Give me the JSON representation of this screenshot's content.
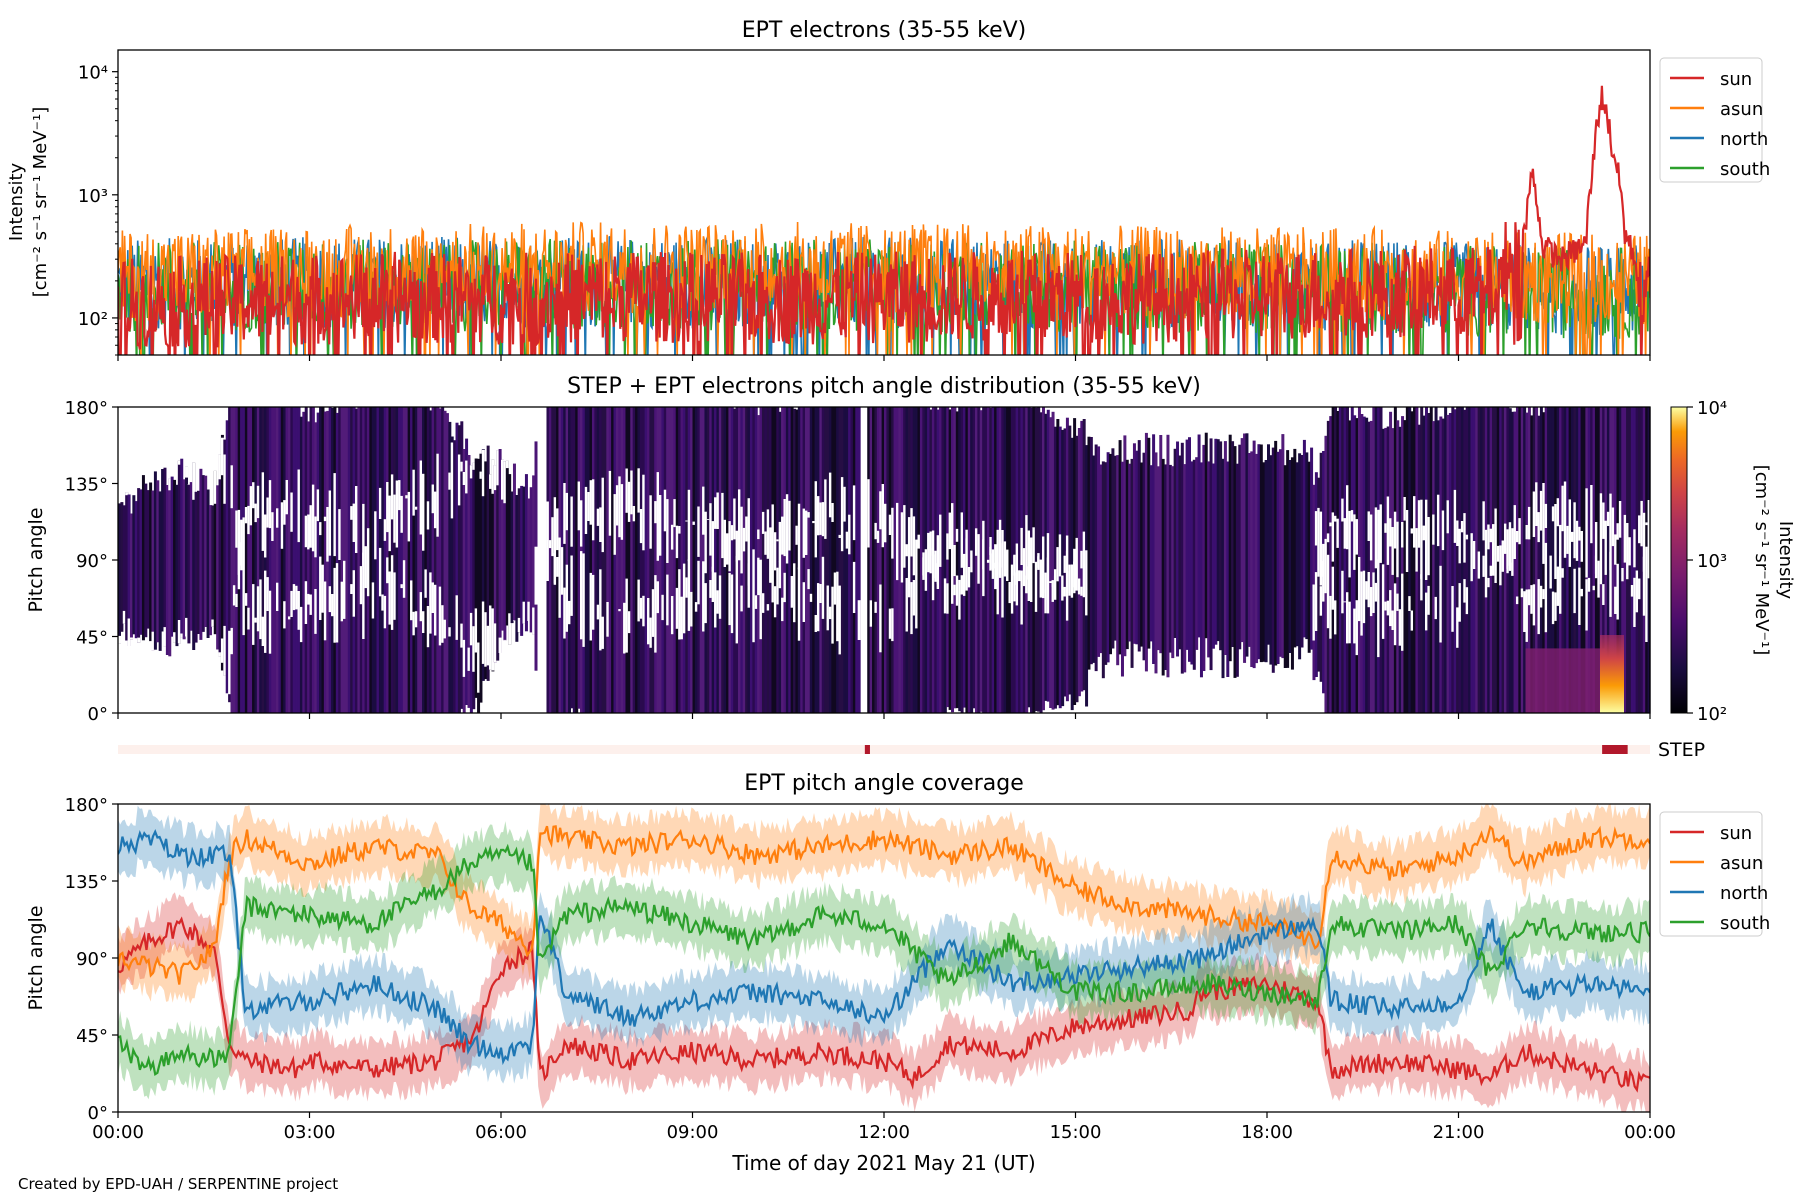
{
  "footer": "Created by EPD-UAH / SERPENTINE project",
  "chart_data": [
    {
      "type": "line",
      "title": "EPT electrons (35-55 keV)",
      "ylabel_line1": "Intensity",
      "ylabel_line2": "[cm⁻² s⁻¹ sr⁻¹ MeV⁻¹]",
      "yscale": "log",
      "ylim": [
        50,
        15000
      ],
      "yticks": [
        {
          "value": 100,
          "label": "10²"
        },
        {
          "value": 1000,
          "label": "10³"
        },
        {
          "value": 10000,
          "label": "10⁴"
        }
      ],
      "xlim_hours": [
        0,
        24
      ],
      "legend_position": "outside-right",
      "series": [
        {
          "name": "sun",
          "color": "#d62728",
          "x": [
            0,
            2,
            4,
            6,
            8,
            10,
            12,
            14,
            16,
            18,
            20,
            21.5,
            22.05,
            22.15,
            22.3,
            22.6,
            23.0,
            23.1,
            23.25,
            23.4,
            23.6,
            23.8,
            24
          ],
          "y": [
            160,
            170,
            180,
            175,
            185,
            175,
            180,
            185,
            180,
            190,
            200,
            200,
            500,
            1500,
            400,
            300,
            400,
            1500,
            6500,
            2500,
            500,
            250,
            200
          ]
        },
        {
          "name": "asun",
          "color": "#ff7f0e",
          "x": [
            0,
            4,
            8,
            12.5,
            16,
            20,
            22,
            24
          ],
          "y": [
            270,
            300,
            320,
            310,
            290,
            280,
            260,
            250
          ]
        },
        {
          "name": "north",
          "color": "#1f77b4",
          "x": [
            0,
            4,
            8,
            12,
            16,
            20,
            22,
            24
          ],
          "y": [
            230,
            240,
            240,
            235,
            230,
            225,
            210,
            200
          ]
        },
        {
          "name": "south",
          "color": "#2ca02c",
          "x": [
            0,
            4,
            8,
            12,
            16,
            20,
            22,
            24
          ],
          "y": [
            220,
            225,
            230,
            225,
            220,
            215,
            200,
            195
          ]
        }
      ]
    },
    {
      "type": "heatmap",
      "title": "STEP + EPT electrons pitch angle distribution (35-55 keV)",
      "ylabel": "Pitch angle",
      "ylim": [
        0,
        180
      ],
      "yticks": [
        "0°",
        "45°",
        "90°",
        "135°",
        "180°"
      ],
      "xlim_hours": [
        0,
        24
      ],
      "colorbar": {
        "label_line1": "Intensity",
        "label_line2": "[cm⁻² s⁻¹ sr⁻¹ MeV⁻¹]",
        "scale": "log",
        "range": [
          100,
          10000
        ],
        "ticks": [
          "10²",
          "10³",
          "10⁴"
        ],
        "colormap": "inferno"
      },
      "hotspot": {
        "x_hours": [
          23.2,
          23.6
        ],
        "pitch_angle": [
          0,
          45
        ],
        "intensity": 6000
      },
      "step_bar": {
        "label": "STEP",
        "highlight_intervals_hours": [
          [
            11.7,
            11.78
          ],
          [
            23.25,
            23.65
          ]
        ],
        "highlight_color": "#b2182b",
        "background_color": "#fdf0ec"
      }
    },
    {
      "type": "line",
      "title": "EPT pitch angle coverage",
      "ylabel": "Pitch angle",
      "xlabel": "Time of day 2021 May 21 (UT)",
      "ylim": [
        0,
        180
      ],
      "yticks": [
        "0°",
        "45°",
        "90°",
        "135°",
        "180°"
      ],
      "xticks": [
        "00:00",
        "03:00",
        "06:00",
        "09:00",
        "12:00",
        "15:00",
        "18:00",
        "21:00",
        "00:00"
      ],
      "xlim_hours": [
        0,
        24
      ],
      "legend_position": "outside-right",
      "band_halfwidth_deg": 15,
      "series": [
        {
          "name": "sun",
          "color": "#d62728",
          "x": [
            0,
            0.5,
            1,
            1.5,
            1.75,
            2,
            2.8,
            3,
            4,
            5,
            5.6,
            6,
            6.5,
            6.6,
            7,
            8,
            9,
            10,
            11,
            12,
            12.5,
            13,
            14,
            15,
            16,
            16.8,
            17,
            18,
            18.8,
            19,
            20,
            21,
            21.5,
            22,
            23,
            24
          ],
          "y": [
            85,
            100,
            110,
            95,
            40,
            30,
            25,
            30,
            25,
            30,
            45,
            85,
            95,
            20,
            40,
            30,
            35,
            30,
            35,
            30,
            20,
            40,
            35,
            50,
            55,
            60,
            70,
            75,
            65,
            25,
            30,
            25,
            20,
            35,
            25,
            15
          ]
        },
        {
          "name": "asun",
          "color": "#ff7f0e",
          "x": [
            0,
            0.5,
            1,
            1.5,
            1.75,
            2,
            3,
            4,
            5,
            5.5,
            6,
            6.5,
            6.6,
            7,
            8,
            9,
            10,
            11,
            12,
            13,
            14,
            15,
            16,
            17,
            18,
            18.8,
            19,
            20,
            21,
            21.5,
            22,
            23,
            24
          ],
          "y": [
            90,
            85,
            80,
            95,
            150,
            160,
            145,
            155,
            150,
            120,
            110,
            95,
            165,
            160,
            155,
            160,
            150,
            155,
            160,
            150,
            155,
            130,
            120,
            115,
            110,
            100,
            150,
            140,
            150,
            165,
            145,
            160,
            160
          ]
        },
        {
          "name": "north",
          "color": "#1f77b4",
          "x": [
            0,
            0.5,
            1,
            1.5,
            1.75,
            2,
            3,
            4,
            5,
            5.5,
            6,
            6.5,
            6.6,
            7,
            8,
            9,
            10,
            11,
            12,
            13,
            14,
            15,
            16,
            17,
            18,
            18.8,
            19,
            20,
            21,
            21.5,
            22,
            23,
            24
          ],
          "y": [
            155,
            160,
            150,
            150,
            150,
            60,
            65,
            75,
            60,
            40,
            35,
            40,
            120,
            70,
            55,
            65,
            70,
            65,
            55,
            100,
            75,
            80,
            85,
            90,
            105,
            110,
            65,
            60,
            65,
            110,
            70,
            75,
            70
          ]
        },
        {
          "name": "south",
          "color": "#2ca02c",
          "x": [
            0,
            0.5,
            1,
            1.5,
            1.75,
            2,
            3,
            4,
            5,
            5.5,
            6,
            6.5,
            6.6,
            7,
            8,
            9,
            10,
            11,
            12,
            13,
            14,
            15,
            16,
            17,
            18,
            18.8,
            19,
            20,
            21,
            21.5,
            22,
            23,
            24
          ],
          "y": [
            40,
            25,
            35,
            30,
            35,
            120,
            115,
            110,
            130,
            145,
            150,
            145,
            85,
            115,
            120,
            110,
            100,
            115,
            110,
            75,
            100,
            70,
            70,
            75,
            70,
            65,
            110,
            105,
            110,
            80,
            110,
            105,
            105
          ]
        }
      ]
    }
  ]
}
